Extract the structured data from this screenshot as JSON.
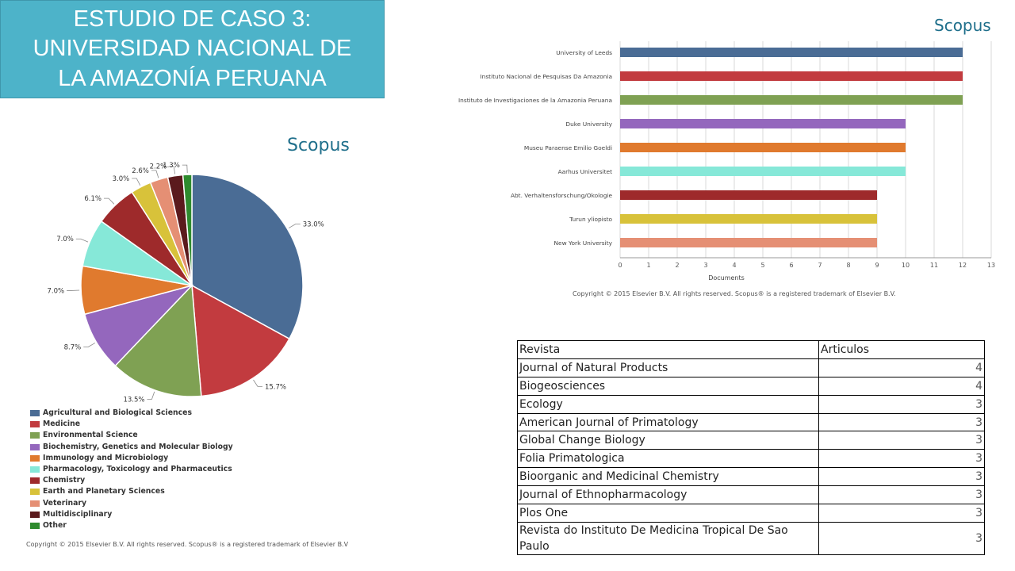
{
  "title_lines": [
    "ESTUDIO DE CASO 3:",
    "UNIVERSIDAD NACIONAL DE",
    "LA AMAZONÍA PERUANA"
  ],
  "logos": {
    "bar": "Scopus",
    "pie": "Scopus"
  },
  "copyright": {
    "bar": "Copyright © 2015 Elsevier B.V. All rights reserved. Scopus® is a registered trademark of Elsevier B.V.",
    "pie": "Copyright © 2015 Elsevier B.V. All rights reserved. Scopus® is a registered trademark of Elsevier B.V"
  },
  "chart_data": [
    {
      "type": "bar",
      "orientation": "horizontal",
      "categories": [
        "University of Leeds",
        "Instituto Nacional de Pesquisas Da Amazonia",
        "Instituto de Investigaciones de la Amazonia Peruana",
        "Duke University",
        "Museu Paraense Emilio Goeldi",
        "Aarhus Universitet",
        "Abt. Verhaltensforschung/Okologie",
        "Turun yliopisto",
        "New York University"
      ],
      "values": [
        12,
        12,
        12,
        10,
        10,
        10,
        9,
        9,
        9
      ],
      "colors": [
        "#4a6c95",
        "#c23b3f",
        "#7fa153",
        "#9467bd",
        "#e07a2e",
        "#86e8d8",
        "#9e2a2b",
        "#d8c23a",
        "#e58f74"
      ],
      "xlabel": "Documents",
      "xlim": [
        0,
        13
      ],
      "xticks": [
        "0",
        "1",
        "2",
        "3",
        "4",
        "5",
        "6",
        "7",
        "8",
        "9",
        "10",
        "11",
        "12",
        "13"
      ],
      "grid": true
    },
    {
      "type": "pie",
      "labels": [
        "Agricultural and Biological Sciences",
        "Medicine",
        "Environmental Science",
        "Biochemistry, Genetics and Molecular Biology",
        "Immunology and Microbiology",
        "Pharmacology, Toxicology and Pharmaceutics",
        "Chemistry",
        "Earth and Planetary Sciences",
        "Veterinary",
        "Multidisciplinary",
        "Other"
      ],
      "values": [
        33.0,
        15.7,
        13.5,
        8.7,
        7.0,
        7.0,
        6.1,
        3.0,
        2.6,
        2.2,
        1.3
      ],
      "data_labels": [
        "33.0%",
        "15.7%",
        "13.5%",
        "8.7%",
        "7.0%",
        "7.0%",
        "6.1%",
        "3.0%",
        "2.6%",
        "2.2%",
        "1.3%"
      ],
      "colors": [
        "#4a6c95",
        "#c23b3f",
        "#7fa153",
        "#9467bd",
        "#e07a2e",
        "#86e8d8",
        "#9e2a2b",
        "#d8c23a",
        "#e58f74",
        "#5b1a1d",
        "#2e8b2e"
      ],
      "legend_position": "bottom"
    },
    {
      "type": "table",
      "columns": [
        "Revista",
        "Articulos"
      ],
      "rows": [
        [
          "Journal of Natural Products",
          "4"
        ],
        [
          "Biogeosciences",
          "4"
        ],
        [
          "Ecology",
          "3"
        ],
        [
          "American Journal of Primatology",
          "3"
        ],
        [
          "Global Change Biology",
          "3"
        ],
        [
          "Folia Primatologica",
          "3"
        ],
        [
          "Bioorganic and Medicinal Chemistry",
          "3"
        ],
        [
          "Journal of Ethnopharmacology",
          "3"
        ],
        [
          "Plos One",
          "3"
        ],
        [
          "Revista do Instituto De Medicina Tropical De Sao Paulo",
          "3"
        ]
      ]
    }
  ]
}
